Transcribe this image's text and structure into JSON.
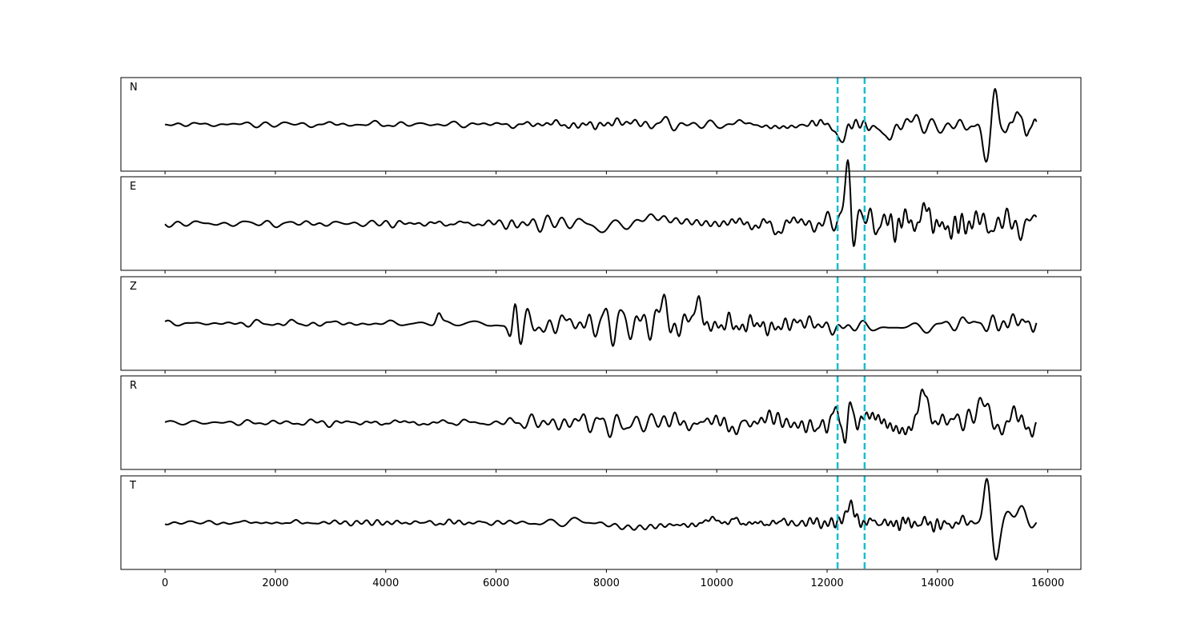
{
  "chart_data": {
    "type": "line",
    "title": "",
    "xlabel": "",
    "ylabel": "",
    "xlim": [
      -800,
      16600
    ],
    "xticks": [
      0,
      2000,
      4000,
      6000,
      8000,
      10000,
      12000,
      14000,
      16000
    ],
    "grid": false,
    "x_range": [
      0,
      15800
    ],
    "pick_lines": {
      "x": [
        12190,
        12680
      ],
      "color": "#17becf",
      "style": "dashed"
    },
    "series_color": "#000000",
    "panels": [
      {
        "label": "N",
        "ylim": [
          -1,
          1
        ],
        "envelope": [
          [
            0,
            0.05
          ],
          [
            3000,
            0.05
          ],
          [
            6000,
            0.05
          ],
          [
            7000,
            0.09
          ],
          [
            7800,
            0.14
          ],
          [
            9000,
            0.13
          ],
          [
            10500,
            0.1
          ],
          [
            11500,
            0.07
          ],
          [
            12100,
            0.1
          ],
          [
            12400,
            0.2
          ],
          [
            12900,
            0.12
          ],
          [
            13600,
            0.2
          ],
          [
            14200,
            0.16
          ],
          [
            14650,
            0.09
          ],
          [
            15800,
            0.1
          ]
        ],
        "bursts": [
          [
            12250,
            -0.25,
            150
          ],
          [
            13050,
            -0.22,
            180
          ],
          [
            14900,
            -0.85,
            90
          ],
          [
            15040,
            0.85,
            90
          ],
          [
            15170,
            -0.2,
            150
          ],
          [
            15460,
            0.35,
            110
          ],
          [
            15620,
            -0.35,
            100
          ],
          [
            15720,
            0.15,
            120
          ]
        ]
      },
      {
        "label": "E",
        "ylim": [
          -1,
          1
        ],
        "envelope": [
          [
            0,
            0.06
          ],
          [
            6100,
            0.06
          ],
          [
            6300,
            0.15
          ],
          [
            9000,
            0.2
          ],
          [
            10500,
            0.17
          ],
          [
            11700,
            0.2
          ],
          [
            12100,
            0.25
          ],
          [
            13000,
            0.28
          ],
          [
            13500,
            0.3
          ],
          [
            14200,
            0.27
          ],
          [
            15800,
            0.22
          ]
        ],
        "bursts": [
          [
            12300,
            0.35,
            110
          ],
          [
            12390,
            1.0,
            70
          ],
          [
            12480,
            -0.7,
            70
          ],
          [
            12580,
            0.35,
            110
          ],
          [
            13800,
            0.45,
            100
          ]
        ]
      },
      {
        "label": "Z",
        "ylim": [
          -1,
          1
        ],
        "envelope": [
          [
            0,
            0.06
          ],
          [
            4900,
            0.06
          ],
          [
            5900,
            0.1
          ],
          [
            6150,
            0.12
          ],
          [
            6300,
            0.28
          ],
          [
            9000,
            0.3
          ],
          [
            11000,
            0.27
          ],
          [
            12000,
            0.24
          ],
          [
            13000,
            0.2
          ],
          [
            14000,
            0.18
          ],
          [
            15800,
            0.15
          ]
        ],
        "bursts": [
          [
            4960,
            0.22,
            60
          ],
          [
            6280,
            -0.55,
            70
          ],
          [
            6350,
            0.8,
            70
          ],
          [
            6440,
            -0.55,
            90
          ],
          [
            9040,
            0.7,
            90
          ],
          [
            9100,
            -0.3,
            90
          ],
          [
            9690,
            0.45,
            90
          ]
        ]
      },
      {
        "label": "R",
        "ylim": [
          -1,
          1
        ],
        "envelope": [
          [
            0,
            0.06
          ],
          [
            6100,
            0.06
          ],
          [
            6300,
            0.18
          ],
          [
            9000,
            0.2
          ],
          [
            11000,
            0.2
          ],
          [
            12000,
            0.22
          ],
          [
            13000,
            0.26
          ],
          [
            14500,
            0.25
          ],
          [
            15800,
            0.22
          ]
        ],
        "bursts": [
          [
            12200,
            0.28,
            130
          ],
          [
            12330,
            -0.8,
            80
          ],
          [
            12420,
            0.6,
            80
          ],
          [
            12520,
            -0.3,
            90
          ],
          [
            13750,
            0.45,
            110
          ],
          [
            14830,
            0.4,
            140
          ]
        ]
      },
      {
        "label": "T",
        "ylim": [
          -1,
          1
        ],
        "envelope": [
          [
            0,
            0.04
          ],
          [
            7000,
            0.06
          ],
          [
            7800,
            0.12
          ],
          [
            9600,
            0.1
          ],
          [
            10800,
            0.09
          ],
          [
            12000,
            0.08
          ],
          [
            12500,
            0.16
          ],
          [
            13200,
            0.12
          ],
          [
            13700,
            0.16
          ],
          [
            14300,
            0.14
          ],
          [
            14700,
            0.07
          ],
          [
            15800,
            0.1
          ]
        ],
        "bursts": [
          [
            12400,
            0.35,
            110
          ],
          [
            14900,
            0.85,
            90
          ],
          [
            15060,
            -0.85,
            90
          ],
          [
            15280,
            0.2,
            140
          ],
          [
            15520,
            0.35,
            110
          ],
          [
            15700,
            -0.2,
            100
          ]
        ]
      }
    ]
  }
}
